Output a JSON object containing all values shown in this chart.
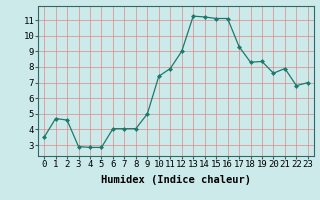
{
  "x": [
    0,
    1,
    2,
    3,
    4,
    5,
    6,
    7,
    8,
    9,
    10,
    11,
    12,
    13,
    14,
    15,
    16,
    17,
    18,
    19,
    20,
    21,
    22,
    23
  ],
  "y": [
    3.5,
    4.7,
    4.6,
    2.9,
    2.85,
    2.85,
    4.05,
    4.05,
    4.05,
    5.0,
    7.4,
    7.9,
    9.0,
    11.25,
    11.2,
    11.1,
    11.1,
    9.3,
    8.3,
    8.35,
    7.6,
    7.9,
    6.8,
    7.0
  ],
  "line_color": "#1a7a6e",
  "marker": "D",
  "marker_size": 2,
  "bg_color": "#cceaea",
  "grid_color": "#e08888",
  "xlabel": "Humidex (Indice chaleur)",
  "xlabel_fontsize": 7.5,
  "xlim": [
    -0.5,
    23.5
  ],
  "ylim": [
    2.3,
    11.9
  ],
  "yticks": [
    3,
    4,
    5,
    6,
    7,
    8,
    9,
    10,
    11
  ],
  "xticks": [
    0,
    1,
    2,
    3,
    4,
    5,
    6,
    7,
    8,
    9,
    10,
    11,
    12,
    13,
    14,
    15,
    16,
    17,
    18,
    19,
    20,
    21,
    22,
    23
  ],
  "tick_fontsize": 6.5
}
